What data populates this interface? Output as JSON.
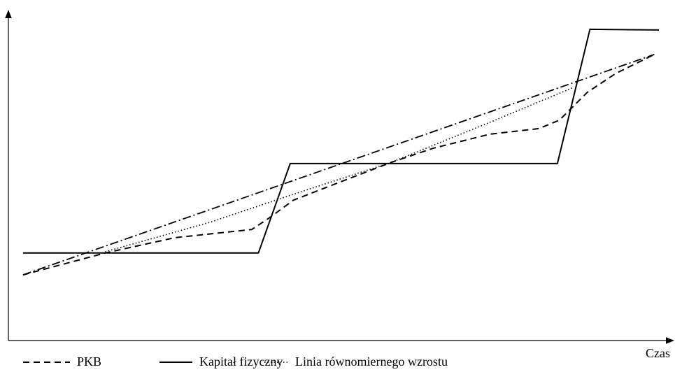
{
  "chart_data": {
    "type": "line",
    "x_label": "Czas",
    "xlim": [
      0,
      100
    ],
    "ylim": [
      0,
      100
    ],
    "series": [
      {
        "name": "PKB",
        "color": "#000000",
        "style": "dashed",
        "x": [
          2.2,
          14.6,
          25.1,
          36.7,
          39.3,
          43.0,
          51.5,
          57.8,
          64.1,
          72.6,
          80.0,
          83.1,
          87.3,
          91.6,
          97.4
        ],
        "values": [
          20.1,
          26.8,
          31.5,
          34.0,
          37.5,
          43.0,
          49.7,
          54.6,
          58.9,
          63.2,
          64.9,
          67.5,
          76.0,
          81.8,
          87.6
        ]
      },
      {
        "name": "Kapitał fizyczny",
        "color": "#000000",
        "style": "solid",
        "x": [
          2.2,
          37.7,
          42.5,
          82.8,
          87.7,
          98.1
        ],
        "values": [
          26.8,
          26.8,
          54.2,
          54.2,
          95.3,
          95.1
        ]
      },
      {
        "name": "Linia równomiernego wzrostu",
        "color": "#000000",
        "style": "dotted",
        "x": [
          14.6,
          30.4,
          43.0,
          57.8,
          72.6,
          85.2
        ],
        "values": [
          27.2,
          36.2,
          44.8,
          54.6,
          66.8,
          77.5
        ]
      },
      {
        "color": "#000000",
        "style": "dashdot",
        "x": [
          2.2,
          97.4
        ],
        "values": [
          20.1,
          87.6
        ]
      }
    ]
  }
}
